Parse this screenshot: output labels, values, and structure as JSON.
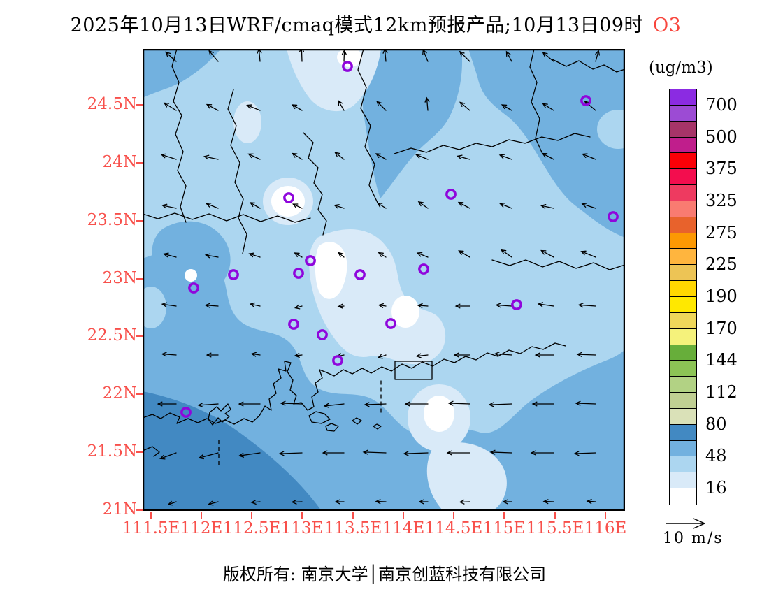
{
  "title": {
    "main": "2025年10月13日WRF/cmaq模式12km预报产品;10月13日09时",
    "pollutant": "O3",
    "pollutant_color": "#f8453c"
  },
  "axes": {
    "color": "#f8504b",
    "lat_labels": [
      "24.5N",
      "24N",
      "23.5N",
      "23N",
      "22.5N",
      "22N",
      "21.5N",
      "21N"
    ],
    "lat_y": [
      150,
      233,
      316,
      399,
      481,
      564,
      647,
      730
    ],
    "lon_labels": [
      "111.5E",
      "112E",
      "112.5E",
      "113E",
      "113.5E",
      "114E",
      "114.5E",
      "115E",
      "115.5E",
      "116E"
    ],
    "lon_x": [
      216,
      288,
      360,
      432,
      505,
      577,
      649,
      721,
      794,
      866
    ]
  },
  "colorbar": {
    "unit_label": "(ug/m3)",
    "tick_labels": [
      "700",
      "500",
      "375",
      "325",
      "275",
      "225",
      "190",
      "170",
      "144",
      "112",
      "80",
      "48",
      "16"
    ],
    "cell_colors": [
      "#8b2be2",
      "#9c4bd4",
      "#a63468",
      "#c01e8c",
      "#fb0007",
      "#f30d4e",
      "#ee3a60",
      "#f97b71",
      "#e8622c",
      "#fc9803",
      "#ffb53e",
      "#edc455",
      "#ffd700",
      "#ffe800",
      "#efd75a",
      "#f5f27b",
      "#67ae3a",
      "#8cc455",
      "#b2d284",
      "#c0cf93",
      "#dae1b8",
      "#4289c2",
      "#72b1df",
      "#acd6f0",
      "#d9eaf8",
      "#ffffff"
    ]
  },
  "wind_legend": {
    "label": "10 m/s"
  },
  "footer": {
    "text": "版权所有: 南京大学│南京创蓝科技有限公司"
  },
  "map_data": {
    "fill_colors": {
      "white_lt16": "#ffffff",
      "pale_16_32": "#d9eaf8",
      "light_32_48": "#acd6f0",
      "medium_48_64": "#72b1df",
      "dark_64_80": "#4289c2"
    },
    "station_marker_color": "#8f06dc",
    "stations": [
      [
        293,
        25
      ],
      [
        634,
        74
      ],
      [
        209,
        213
      ],
      [
        441,
        208
      ],
      [
        673,
        240
      ],
      [
        240,
        303
      ],
      [
        223,
        321
      ],
      [
        130,
        323
      ],
      [
        73,
        342
      ],
      [
        311,
        323
      ],
      [
        402,
        315
      ],
      [
        535,
        366
      ],
      [
        216,
        394
      ],
      [
        257,
        409
      ],
      [
        355,
        393
      ],
      [
        279,
        446
      ],
      [
        62,
        520
      ]
    ],
    "wind_vectors": [
      [
        48,
        18,
        138,
        20
      ],
      [
        108,
        18,
        130,
        20
      ],
      [
        168,
        18,
        95,
        18
      ],
      [
        228,
        18,
        92,
        20
      ],
      [
        288,
        18,
        88,
        16
      ],
      [
        348,
        18,
        95,
        18
      ],
      [
        408,
        18,
        112,
        18
      ],
      [
        468,
        18,
        135,
        20
      ],
      [
        528,
        18,
        118,
        16
      ],
      [
        588,
        18,
        140,
        20
      ],
      [
        648,
        18,
        75,
        16
      ],
      [
        48,
        88,
        148,
        20
      ],
      [
        108,
        88,
        152,
        18
      ],
      [
        168,
        88,
        158,
        20
      ],
      [
        228,
        88,
        150,
        16
      ],
      [
        288,
        88,
        120,
        16
      ],
      [
        348,
        88,
        135,
        18
      ],
      [
        408,
        88,
        95,
        18
      ],
      [
        468,
        88,
        140,
        18
      ],
      [
        528,
        88,
        150,
        16
      ],
      [
        588,
        88,
        148,
        18
      ],
      [
        648,
        88,
        140,
        20
      ],
      [
        48,
        158,
        162,
        22
      ],
      [
        108,
        158,
        168,
        20
      ],
      [
        168,
        158,
        155,
        18
      ],
      [
        228,
        158,
        148,
        16
      ],
      [
        288,
        158,
        142,
        16
      ],
      [
        348,
        158,
        150,
        16
      ],
      [
        408,
        158,
        158,
        18
      ],
      [
        468,
        158,
        165,
        18
      ],
      [
        528,
        158,
        160,
        18
      ],
      [
        588,
        158,
        152,
        18
      ],
      [
        648,
        158,
        158,
        20
      ],
      [
        48,
        228,
        168,
        20
      ],
      [
        108,
        228,
        158,
        18
      ],
      [
        168,
        228,
        150,
        16
      ],
      [
        228,
        228,
        155,
        14
      ],
      [
        288,
        228,
        162,
        14
      ],
      [
        348,
        228,
        148,
        14
      ],
      [
        408,
        228,
        145,
        16
      ],
      [
        468,
        228,
        152,
        18
      ],
      [
        528,
        228,
        158,
        18
      ],
      [
        588,
        228,
        168,
        18
      ],
      [
        648,
        228,
        162,
        20
      ],
      [
        48,
        298,
        165,
        18
      ],
      [
        108,
        298,
        170,
        18
      ],
      [
        168,
        298,
        162,
        16
      ],
      [
        228,
        298,
        150,
        12
      ],
      [
        288,
        298,
        140,
        10
      ],
      [
        348,
        298,
        148,
        12
      ],
      [
        408,
        298,
        158,
        16
      ],
      [
        468,
        298,
        150,
        18
      ],
      [
        528,
        298,
        145,
        18
      ],
      [
        588,
        298,
        152,
        20
      ],
      [
        648,
        298,
        158,
        22
      ],
      [
        48,
        368,
        172,
        20
      ],
      [
        108,
        368,
        176,
        18
      ],
      [
        168,
        368,
        168,
        14
      ],
      [
        228,
        368,
        195,
        10
      ],
      [
        288,
        368,
        185,
        8
      ],
      [
        348,
        368,
        172,
        10
      ],
      [
        408,
        368,
        176,
        14
      ],
      [
        468,
        368,
        180,
        20
      ],
      [
        528,
        368,
        176,
        22
      ],
      [
        588,
        368,
        172,
        22
      ],
      [
        648,
        368,
        176,
        24
      ],
      [
        48,
        438,
        176,
        20
      ],
      [
        108,
        438,
        180,
        16
      ],
      [
        168,
        438,
        172,
        12
      ],
      [
        228,
        438,
        186,
        10
      ],
      [
        288,
        438,
        192,
        10
      ],
      [
        348,
        438,
        200,
        12
      ],
      [
        408,
        438,
        186,
        16
      ],
      [
        468,
        438,
        180,
        22
      ],
      [
        528,
        438,
        176,
        24
      ],
      [
        588,
        438,
        180,
        26
      ],
      [
        648,
        438,
        178,
        26
      ],
      [
        48,
        508,
        180,
        26
      ],
      [
        108,
        508,
        184,
        28
      ],
      [
        168,
        508,
        180,
        30
      ],
      [
        228,
        508,
        178,
        30
      ],
      [
        288,
        508,
        186,
        28
      ],
      [
        348,
        508,
        182,
        30
      ],
      [
        408,
        508,
        180,
        32
      ],
      [
        468,
        508,
        178,
        30
      ],
      [
        528,
        508,
        182,
        32
      ],
      [
        588,
        508,
        180,
        30
      ],
      [
        648,
        508,
        178,
        28
      ],
      [
        48,
        578,
        200,
        24
      ],
      [
        108,
        578,
        195,
        28
      ],
      [
        168,
        578,
        188,
        30
      ],
      [
        228,
        578,
        182,
        32
      ],
      [
        288,
        578,
        180,
        30
      ],
      [
        348,
        578,
        178,
        32
      ],
      [
        408,
        578,
        182,
        34
      ],
      [
        468,
        578,
        180,
        32
      ],
      [
        528,
        578,
        178,
        30
      ],
      [
        588,
        578,
        180,
        32
      ],
      [
        648,
        578,
        182,
        30
      ],
      [
        48,
        648,
        200,
        12
      ],
      [
        108,
        648,
        195,
        14
      ],
      [
        168,
        648,
        185,
        12
      ],
      [
        228,
        648,
        182,
        14
      ],
      [
        288,
        648,
        180,
        12
      ],
      [
        348,
        648,
        178,
        14
      ],
      [
        408,
        648,
        180,
        12
      ],
      [
        468,
        648,
        182,
        14
      ],
      [
        528,
        648,
        180,
        12
      ],
      [
        588,
        648,
        178,
        14
      ],
      [
        648,
        648,
        176,
        12
      ]
    ]
  }
}
